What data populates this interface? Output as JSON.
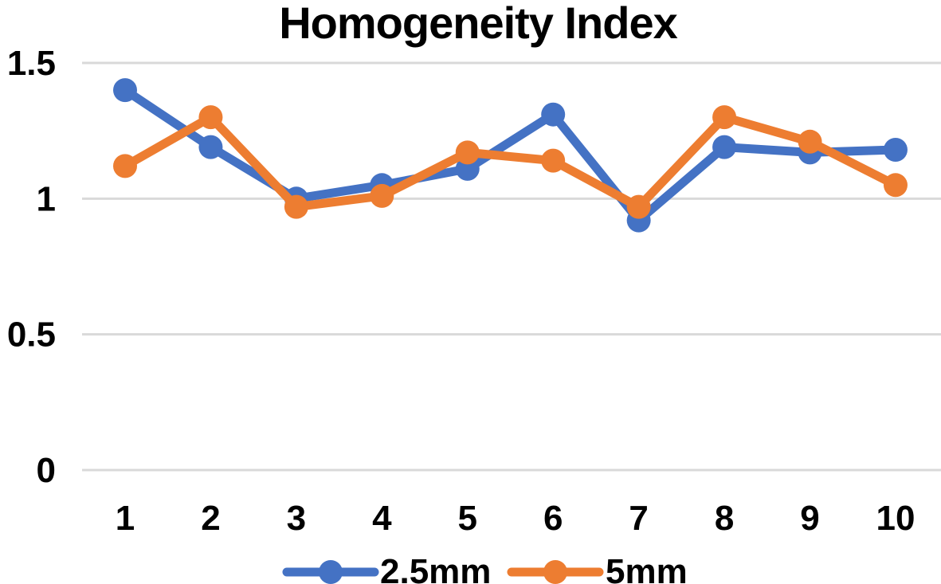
{
  "title": "Homogeneity Index",
  "colors": {
    "series_blue": "#4472C4",
    "series_orange": "#ED7D31",
    "gridline": "#D9D9D9",
    "text": "#000000",
    "background": "#FFFFFF"
  },
  "chart_data": {
    "type": "line",
    "title": "Homogeneity Index",
    "xlabel": "",
    "ylabel": "",
    "categories": [
      "1",
      "2",
      "3",
      "4",
      "5",
      "6",
      "7",
      "8",
      "9",
      "10"
    ],
    "x": [
      1,
      2,
      3,
      4,
      5,
      6,
      7,
      8,
      9,
      10
    ],
    "series": [
      {
        "name": "2.5mm",
        "color": "#4472C4",
        "marker": "circle",
        "values": [
          1.4,
          1.19,
          1.0,
          1.05,
          1.11,
          1.31,
          0.92,
          1.19,
          1.17,
          1.18
        ]
      },
      {
        "name": "5mm",
        "color": "#ED7D31",
        "marker": "circle",
        "values": [
          1.12,
          1.3,
          0.97,
          1.01,
          1.17,
          1.14,
          0.97,
          1.3,
          1.21,
          1.05
        ]
      }
    ],
    "ylim": [
      0,
      1.5
    ],
    "yticks": [
      0,
      0.5,
      1,
      1.5
    ],
    "ytick_labels": [
      "0",
      "0.5",
      "1",
      "1.5"
    ],
    "grid": true,
    "gridline_color": "#D9D9D9",
    "legend_position": "bottom"
  },
  "legend": {
    "items": [
      {
        "label": "2.5mm",
        "color": "#4472C4"
      },
      {
        "label": "5mm",
        "color": "#ED7D31"
      }
    ]
  }
}
